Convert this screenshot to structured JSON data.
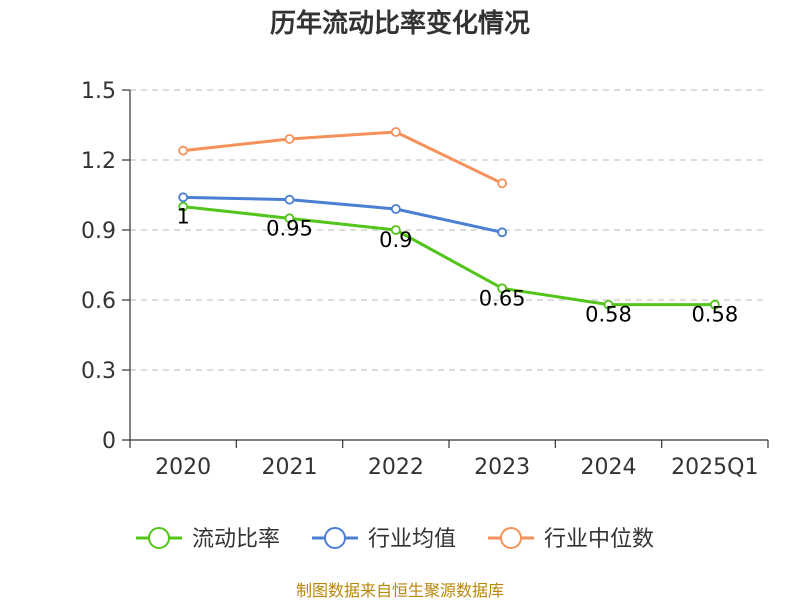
{
  "chart_data": {
    "type": "line",
    "title": "历年流动比率变化情况",
    "categories": [
      "2020",
      "2021",
      "2022",
      "2023",
      "2024",
      "2025Q1"
    ],
    "y_ticks": [
      "0",
      "0.3",
      "0.6",
      "0.9",
      "1.2",
      "1.5"
    ],
    "ylim": [
      0,
      1.5
    ],
    "grid": true,
    "legend_position": "bottom",
    "series": [
      {
        "name": "流动比率",
        "color": "#52c41a",
        "values": [
          1.0,
          0.95,
          0.9,
          0.65,
          0.58,
          0.58
        ],
        "labels": [
          "1",
          "0.95",
          "0.9",
          "0.65",
          "0.58",
          "0.58"
        ]
      },
      {
        "name": "行业均值",
        "color": "#4a7fd4",
        "values": [
          1.04,
          1.03,
          0.99,
          0.89,
          null,
          null
        ]
      },
      {
        "name": "行业中位数",
        "color": "#f5925c",
        "values": [
          1.24,
          1.29,
          1.32,
          1.1,
          null,
          null
        ]
      }
    ]
  },
  "source": "制图数据来自恒生聚源数据库"
}
